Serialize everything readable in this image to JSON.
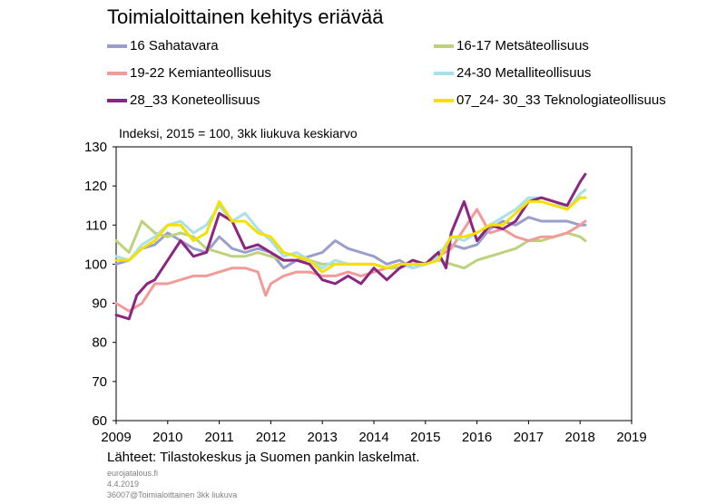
{
  "title": "Toimialoittainen kehitys eriävää",
  "subtitle": "Indeksi, 2015 = 100, 3kk liukuva keskiarvo",
  "sources": "Lähteet: Tilastokeskus ja Suomen pankin laskelmat.",
  "meta": [
    "eurojatalous.fi",
    "4.4.2019",
    "36007@Toimialoittainen 3kk liukuva"
  ],
  "colors": {
    "sahatavara": "#9a9ecc",
    "metsateollisuus": "#bcd27c",
    "kemianteollisuus": "#f29a9a",
    "metalliteollisuus": "#a9e0ea",
    "koneteollisuus": "#8b2582",
    "teknologiateollisuus": "#f5e000"
  },
  "chart_data": {
    "type": "line",
    "title": "Toimialoittainen kehitys eriävää",
    "ylabel": "Indeksi, 2015 = 100, 3kk liukuva keskiarvo",
    "xlabel": "",
    "xlim": [
      2009,
      2019
    ],
    "ylim": [
      60,
      130
    ],
    "xticks": [
      "2009",
      "2010",
      "2011",
      "2012",
      "2013",
      "2014",
      "2015",
      "2016",
      "2017",
      "2018",
      "2019"
    ],
    "yticks": [
      "60",
      "70",
      "80",
      "90",
      "100",
      "110",
      "120",
      "130"
    ],
    "legend": "top, two columns",
    "series": [
      {
        "key": "sahatavara",
        "name": "16 Sahatavara",
        "color": "#9a9ecc",
        "x": [
          2009.0,
          2009.25,
          2009.5,
          2009.75,
          2010.0,
          2010.25,
          2010.5,
          2010.75,
          2011.0,
          2011.25,
          2011.5,
          2011.75,
          2012.0,
          2012.25,
          2012.5,
          2012.75,
          2013.0,
          2013.25,
          2013.5,
          2013.75,
          2014.0,
          2014.25,
          2014.5,
          2014.75,
          2015.0,
          2015.25,
          2015.5,
          2015.75,
          2016.0,
          2016.25,
          2016.5,
          2016.75,
          2017.0,
          2017.25,
          2017.5,
          2017.75,
          2018.0,
          2018.1
        ],
        "y": [
          100,
          101,
          104,
          105,
          108,
          106,
          104,
          103,
          107,
          104,
          103,
          104,
          103,
          99,
          101,
          102,
          103,
          106,
          104,
          103,
          102,
          100,
          101,
          99,
          100,
          103,
          105,
          104,
          105,
          109,
          111,
          110,
          112,
          111,
          111,
          111,
          110,
          110
        ]
      },
      {
        "key": "metsateollisuus",
        "name": "16-17 Metsäteollisuus",
        "color": "#bcd27c",
        "x": [
          2009.0,
          2009.25,
          2009.5,
          2009.75,
          2010.0,
          2010.25,
          2010.5,
          2010.75,
          2011.0,
          2011.25,
          2011.5,
          2011.75,
          2012.0,
          2012.25,
          2012.5,
          2012.75,
          2013.0,
          2013.25,
          2013.5,
          2013.75,
          2014.0,
          2014.25,
          2014.5,
          2014.75,
          2015.0,
          2015.25,
          2015.5,
          2015.75,
          2016.0,
          2016.25,
          2016.5,
          2016.75,
          2017.0,
          2017.25,
          2017.5,
          2017.75,
          2018.0,
          2018.1
        ],
        "y": [
          106,
          103,
          111,
          108,
          107,
          108,
          107,
          104,
          103,
          102,
          102,
          103,
          102,
          101,
          101,
          101,
          100,
          100,
          100,
          100,
          100,
          99,
          99,
          100,
          100,
          101,
          100,
          99,
          101,
          102,
          103,
          104,
          106,
          106,
          107,
          108,
          107,
          106
        ]
      },
      {
        "key": "kemianteollisuus",
        "name": "19-22 Kemianteollisuus",
        "color": "#f29a9a",
        "x": [
          2009.0,
          2009.25,
          2009.5,
          2009.75,
          2010.0,
          2010.25,
          2010.5,
          2010.75,
          2011.0,
          2011.25,
          2011.5,
          2011.75,
          2011.9,
          2012.0,
          2012.25,
          2012.5,
          2012.75,
          2013.0,
          2013.25,
          2013.5,
          2013.75,
          2014.0,
          2014.25,
          2014.5,
          2014.75,
          2015.0,
          2015.25,
          2015.5,
          2015.75,
          2016.0,
          2016.25,
          2016.5,
          2016.75,
          2017.0,
          2017.25,
          2017.5,
          2017.75,
          2018.0,
          2018.1
        ],
        "y": [
          90,
          88,
          90,
          95,
          95,
          96,
          97,
          97,
          98,
          99,
          99,
          98,
          92,
          95,
          97,
          98,
          98,
          97,
          97,
          98,
          97,
          98,
          99,
          100,
          100,
          100,
          102,
          104,
          109,
          114,
          108,
          109,
          107,
          106,
          107,
          107,
          108,
          110,
          111
        ]
      },
      {
        "key": "metalliteollisuus",
        "name": "24-30 Metalliteollisuus",
        "color": "#a9e0ea",
        "x": [
          2009.0,
          2009.25,
          2009.5,
          2009.75,
          2010.0,
          2010.25,
          2010.5,
          2010.75,
          2011.0,
          2011.25,
          2011.5,
          2011.75,
          2012.0,
          2012.25,
          2012.5,
          2012.75,
          2013.0,
          2013.25,
          2013.5,
          2013.75,
          2014.0,
          2014.25,
          2014.5,
          2014.75,
          2015.0,
          2015.25,
          2015.5,
          2015.75,
          2016.0,
          2016.25,
          2016.5,
          2016.75,
          2017.0,
          2017.25,
          2017.5,
          2017.75,
          2018.0,
          2018.1
        ],
        "y": [
          102,
          101,
          105,
          107,
          110,
          111,
          108,
          110,
          115,
          111,
          113,
          109,
          106,
          102,
          103,
          101,
          99,
          101,
          100,
          100,
          100,
          99,
          100,
          99,
          100,
          102,
          107,
          106,
          108,
          110,
          112,
          114,
          117,
          117,
          116,
          114,
          118,
          119
        ]
      },
      {
        "key": "koneteollisuus",
        "name": "28_33 Koneteollisuus",
        "color": "#8b2582",
        "x": [
          2009.0,
          2009.25,
          2009.4,
          2009.6,
          2009.75,
          2010.0,
          2010.25,
          2010.5,
          2010.75,
          2011.0,
          2011.25,
          2011.5,
          2011.75,
          2012.0,
          2012.25,
          2012.5,
          2012.75,
          2013.0,
          2013.25,
          2013.5,
          2013.75,
          2014.0,
          2014.25,
          2014.5,
          2014.75,
          2015.0,
          2015.25,
          2015.4,
          2015.5,
          2015.75,
          2016.0,
          2016.25,
          2016.5,
          2016.75,
          2017.0,
          2017.25,
          2017.5,
          2017.75,
          2018.0,
          2018.1
        ],
        "y": [
          87,
          86,
          92,
          95,
          96,
          101,
          106,
          102,
          103,
          113,
          111,
          104,
          105,
          103,
          101,
          101,
          100,
          96,
          95,
          97,
          95,
          99,
          96,
          99,
          101,
          100,
          103,
          99,
          108,
          116,
          106,
          110,
          109,
          111,
          116,
          117,
          116,
          115,
          121,
          123
        ]
      },
      {
        "key": "teknologiateollisuus",
        "name": "07_24- 30_33 Teknologiateollisuus",
        "color": "#f5e000",
        "x": [
          2009.0,
          2009.25,
          2009.5,
          2009.75,
          2010.0,
          2010.25,
          2010.5,
          2010.75,
          2011.0,
          2011.25,
          2011.5,
          2011.75,
          2012.0,
          2012.25,
          2012.5,
          2012.75,
          2013.0,
          2013.25,
          2013.5,
          2013.75,
          2014.0,
          2014.25,
          2014.5,
          2014.75,
          2015.0,
          2015.25,
          2015.5,
          2015.75,
          2016.0,
          2016.25,
          2016.5,
          2016.75,
          2017.0,
          2017.25,
          2017.5,
          2017.75,
          2018.0,
          2018.1
        ],
        "y": [
          101,
          101,
          104,
          106,
          110,
          110,
          106,
          108,
          116,
          111,
          111,
          108,
          107,
          103,
          102,
          101,
          98,
          100,
          100,
          100,
          100,
          99,
          100,
          100,
          100,
          101,
          107,
          107,
          108,
          110,
          110,
          113,
          116,
          116,
          115,
          114,
          117,
          117
        ]
      }
    ]
  }
}
